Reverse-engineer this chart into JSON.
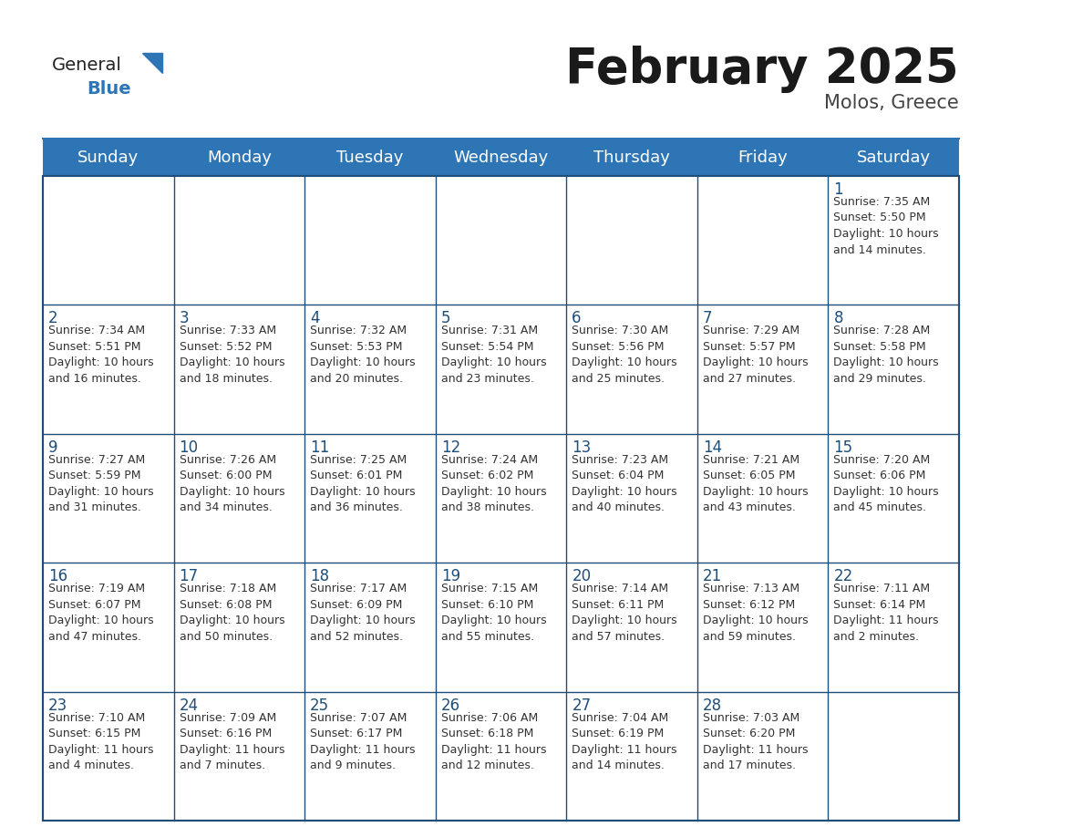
{
  "title": "February 2025",
  "subtitle": "Molos, Greece",
  "header_bg": "#2E75B6",
  "header_text_color": "#FFFFFF",
  "cell_bg": "#FFFFFF",
  "header_border_color": "#2E75B6",
  "row_border_color": "#1F4E79",
  "title_color": "#1a1a1a",
  "subtitle_color": "#444444",
  "day_num_color": "#1F4E79",
  "cell_text_color": "#333333",
  "day_names": [
    "Sunday",
    "Monday",
    "Tuesday",
    "Wednesday",
    "Thursday",
    "Friday",
    "Saturday"
  ],
  "title_fontsize": 38,
  "subtitle_fontsize": 15,
  "header_fontsize": 13,
  "day_num_fontsize": 12,
  "cell_fontsize": 9.0,
  "weeks": [
    [
      {
        "day": null,
        "info": null
      },
      {
        "day": null,
        "info": null
      },
      {
        "day": null,
        "info": null
      },
      {
        "day": null,
        "info": null
      },
      {
        "day": null,
        "info": null
      },
      {
        "day": null,
        "info": null
      },
      {
        "day": "1",
        "info": "Sunrise: 7:35 AM\nSunset: 5:50 PM\nDaylight: 10 hours\nand 14 minutes."
      }
    ],
    [
      {
        "day": "2",
        "info": "Sunrise: 7:34 AM\nSunset: 5:51 PM\nDaylight: 10 hours\nand 16 minutes."
      },
      {
        "day": "3",
        "info": "Sunrise: 7:33 AM\nSunset: 5:52 PM\nDaylight: 10 hours\nand 18 minutes."
      },
      {
        "day": "4",
        "info": "Sunrise: 7:32 AM\nSunset: 5:53 PM\nDaylight: 10 hours\nand 20 minutes."
      },
      {
        "day": "5",
        "info": "Sunrise: 7:31 AM\nSunset: 5:54 PM\nDaylight: 10 hours\nand 23 minutes."
      },
      {
        "day": "6",
        "info": "Sunrise: 7:30 AM\nSunset: 5:56 PM\nDaylight: 10 hours\nand 25 minutes."
      },
      {
        "day": "7",
        "info": "Sunrise: 7:29 AM\nSunset: 5:57 PM\nDaylight: 10 hours\nand 27 minutes."
      },
      {
        "day": "8",
        "info": "Sunrise: 7:28 AM\nSunset: 5:58 PM\nDaylight: 10 hours\nand 29 minutes."
      }
    ],
    [
      {
        "day": "9",
        "info": "Sunrise: 7:27 AM\nSunset: 5:59 PM\nDaylight: 10 hours\nand 31 minutes."
      },
      {
        "day": "10",
        "info": "Sunrise: 7:26 AM\nSunset: 6:00 PM\nDaylight: 10 hours\nand 34 minutes."
      },
      {
        "day": "11",
        "info": "Sunrise: 7:25 AM\nSunset: 6:01 PM\nDaylight: 10 hours\nand 36 minutes."
      },
      {
        "day": "12",
        "info": "Sunrise: 7:24 AM\nSunset: 6:02 PM\nDaylight: 10 hours\nand 38 minutes."
      },
      {
        "day": "13",
        "info": "Sunrise: 7:23 AM\nSunset: 6:04 PM\nDaylight: 10 hours\nand 40 minutes."
      },
      {
        "day": "14",
        "info": "Sunrise: 7:21 AM\nSunset: 6:05 PM\nDaylight: 10 hours\nand 43 minutes."
      },
      {
        "day": "15",
        "info": "Sunrise: 7:20 AM\nSunset: 6:06 PM\nDaylight: 10 hours\nand 45 minutes."
      }
    ],
    [
      {
        "day": "16",
        "info": "Sunrise: 7:19 AM\nSunset: 6:07 PM\nDaylight: 10 hours\nand 47 minutes."
      },
      {
        "day": "17",
        "info": "Sunrise: 7:18 AM\nSunset: 6:08 PM\nDaylight: 10 hours\nand 50 minutes."
      },
      {
        "day": "18",
        "info": "Sunrise: 7:17 AM\nSunset: 6:09 PM\nDaylight: 10 hours\nand 52 minutes."
      },
      {
        "day": "19",
        "info": "Sunrise: 7:15 AM\nSunset: 6:10 PM\nDaylight: 10 hours\nand 55 minutes."
      },
      {
        "day": "20",
        "info": "Sunrise: 7:14 AM\nSunset: 6:11 PM\nDaylight: 10 hours\nand 57 minutes."
      },
      {
        "day": "21",
        "info": "Sunrise: 7:13 AM\nSunset: 6:12 PM\nDaylight: 10 hours\nand 59 minutes."
      },
      {
        "day": "22",
        "info": "Sunrise: 7:11 AM\nSunset: 6:14 PM\nDaylight: 11 hours\nand 2 minutes."
      }
    ],
    [
      {
        "day": "23",
        "info": "Sunrise: 7:10 AM\nSunset: 6:15 PM\nDaylight: 11 hours\nand 4 minutes."
      },
      {
        "day": "24",
        "info": "Sunrise: 7:09 AM\nSunset: 6:16 PM\nDaylight: 11 hours\nand 7 minutes."
      },
      {
        "day": "25",
        "info": "Sunrise: 7:07 AM\nSunset: 6:17 PM\nDaylight: 11 hours\nand 9 minutes."
      },
      {
        "day": "26",
        "info": "Sunrise: 7:06 AM\nSunset: 6:18 PM\nDaylight: 11 hours\nand 12 minutes."
      },
      {
        "day": "27",
        "info": "Sunrise: 7:04 AM\nSunset: 6:19 PM\nDaylight: 11 hours\nand 14 minutes."
      },
      {
        "day": "28",
        "info": "Sunrise: 7:03 AM\nSunset: 6:20 PM\nDaylight: 11 hours\nand 17 minutes."
      },
      {
        "day": null,
        "info": null
      }
    ]
  ]
}
